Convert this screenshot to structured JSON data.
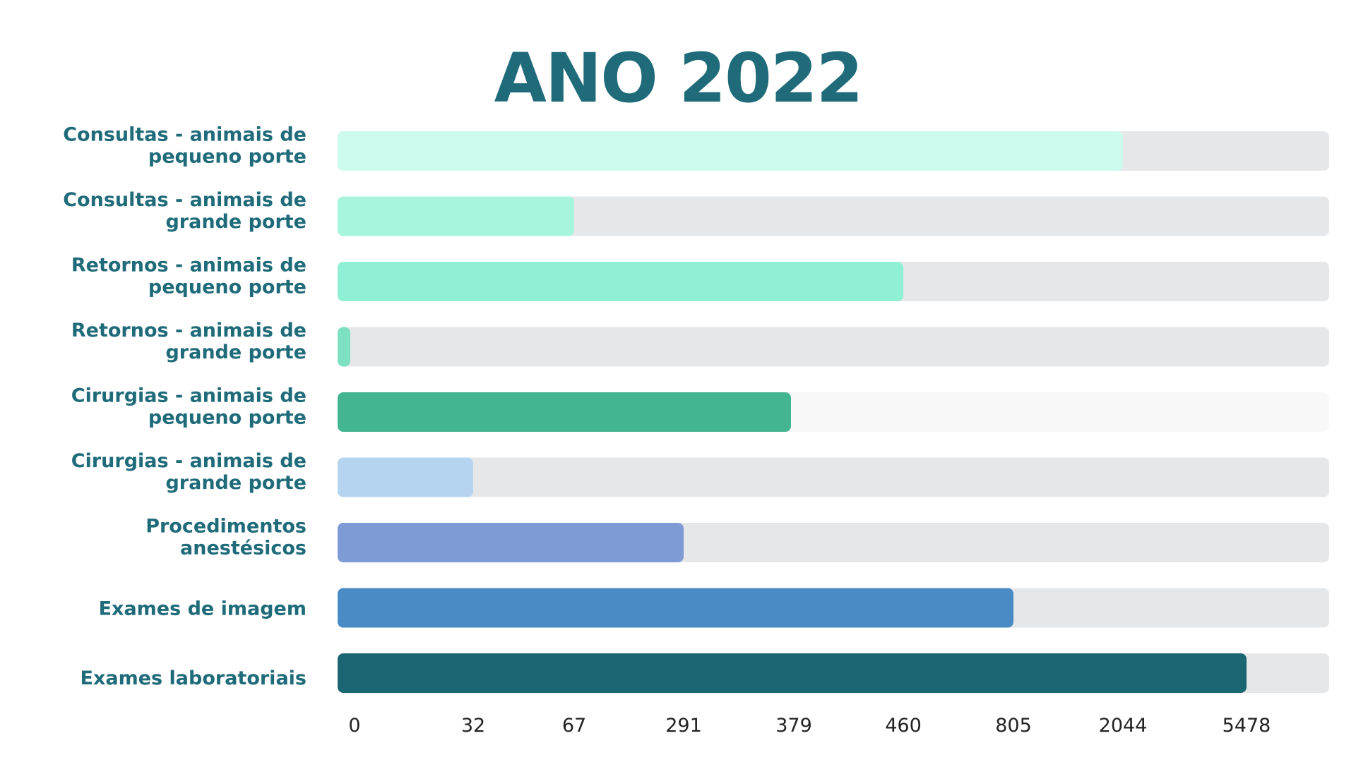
{
  "chart_data": {
    "type": "bar",
    "orientation": "horizontal",
    "title": "ANO 2022",
    "categories": [
      "Consultas - animais de pequeno porte",
      "Consultas - animais de grande porte",
      "Retornos - animais de pequeno porte",
      "Retornos - animais de grande porte",
      "Cirurgias - animais de pequeno porte",
      "Cirurgias - animais de grande porte",
      "Procedimentos anestésicos",
      "Exames de imagem",
      "Exames laboratoriais"
    ],
    "label_lines": [
      [
        "Consultas - animais de",
        "pequeno porte"
      ],
      [
        "Consultas - animais de",
        "grande porte"
      ],
      [
        "Retornos - animais de",
        "pequeno porte"
      ],
      [
        "Retornos - animais de",
        "grande porte"
      ],
      [
        "Cirurgias - animais de",
        "pequeno porte"
      ],
      [
        "Cirurgias - animais de",
        "grande porte"
      ],
      [
        "Procedimentos",
        "anestésicos"
      ],
      [
        "Exames de imagem"
      ],
      [
        "Exames laboratoriais"
      ]
    ],
    "values": [
      2044,
      67,
      460,
      2,
      379,
      32,
      291,
      805,
      5478
    ],
    "x_ticks": [
      "0",
      "32",
      "67",
      "291",
      "379",
      "460",
      "805",
      "2044",
      "5478"
    ],
    "x_scale": "ordinal-ticks",
    "grid": false,
    "legend": "none",
    "colors": [
      "#ccfbee",
      "#a6f5dc",
      "#8ff0d6",
      "#7ee0c2",
      "#43b691",
      "#b4d4f0",
      "#7e9bd6",
      "#4a8bc5",
      "#1b6673"
    ],
    "track_colors": [
      "#e6e7e9",
      "#e6e7e9",
      "#e6e7e9",
      "#e6e7e9",
      "#f8f8f8",
      "#e6e7e9",
      "#e6e7e9",
      "#e6e7e9",
      "#e6e7e9"
    ],
    "label_color": "#1f6b7a"
  }
}
